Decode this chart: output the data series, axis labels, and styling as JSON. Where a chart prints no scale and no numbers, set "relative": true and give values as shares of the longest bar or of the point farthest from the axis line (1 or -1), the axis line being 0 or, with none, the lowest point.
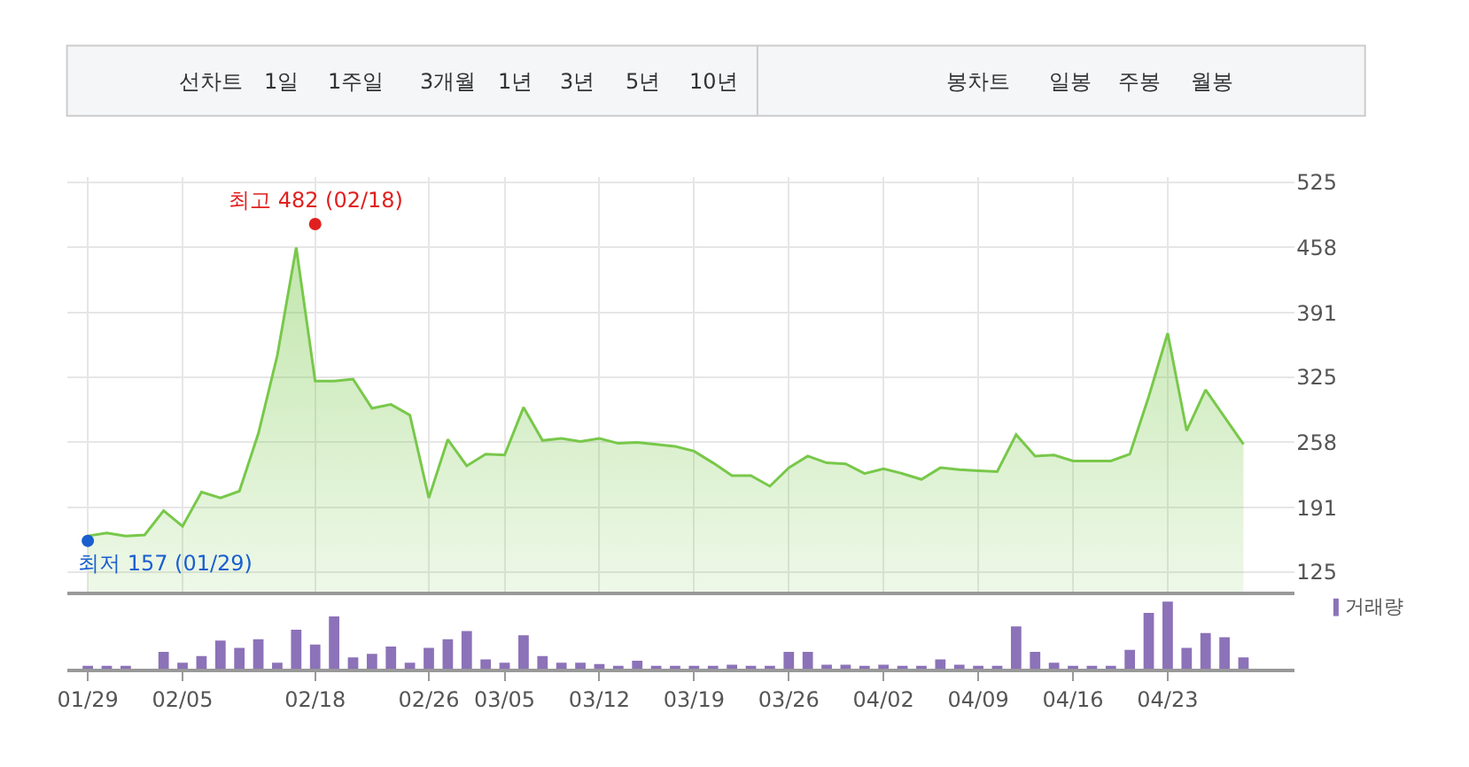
{
  "chart_data": [
    {
      "type": "area",
      "categories": [
        "01/29",
        null,
        null,
        null,
        null,
        "02/05",
        null,
        null,
        null,
        null,
        null,
        null,
        "02/18",
        null,
        null,
        null,
        null,
        null,
        "02/26",
        null,
        null,
        null,
        "03/05",
        null,
        null,
        null,
        null,
        "03/12",
        null,
        null,
        null,
        null,
        "03/19",
        null,
        null,
        null,
        null,
        "03/26",
        null,
        null,
        null,
        null,
        "04/02",
        null,
        null,
        null,
        null,
        "04/09",
        null,
        null,
        null,
        null,
        "04/16",
        null,
        null,
        null,
        null,
        "04/23",
        null,
        null,
        null,
        null
      ],
      "series": [
        {
          "color": "#78c84a",
          "values": [
            162,
            165,
            162,
            163,
            188,
            172,
            207,
            201,
            208,
            267,
            347,
            458,
            321,
            321,
            323,
            293,
            297,
            286,
            201,
            261,
            234,
            246,
            245,
            294,
            260,
            262,
            259,
            262,
            257,
            258,
            256,
            254,
            249,
            237,
            224,
            224,
            213,
            232,
            244,
            237,
            236,
            226,
            231,
            226,
            220,
            232,
            230,
            229,
            228,
            266,
            244,
            245,
            239,
            239,
            239,
            246,
            305,
            370,
            270,
            312,
            284,
            256
          ]
        }
      ],
      "ylim": [
        105,
        530
      ],
      "yticks": [
        125,
        191,
        258,
        325,
        391,
        458,
        525
      ],
      "grid": true,
      "tick_labels": "y",
      "annotations": [
        "선차트",
        "1일",
        "1주일",
        "3개월",
        "1년",
        "3년",
        "5년",
        "10년",
        "봉차트",
        "일봉",
        "주봉",
        "월봉",
        {
          "text": "최고 482 (02/18)",
          "x": "02/18",
          "y": 482
        },
        {
          "text": "최저 157 (01/29)",
          "x": "01/29",
          "y": 157
        }
      ]
    },
    {
      "type": "bar",
      "categories": [
        "01/29",
        null,
        null,
        null,
        null,
        "02/05",
        null,
        null,
        null,
        null,
        null,
        null,
        "02/18",
        null,
        null,
        null,
        null,
        null,
        "02/26",
        null,
        null,
        null,
        "03/05",
        null,
        null,
        null,
        null,
        "03/12",
        null,
        null,
        null,
        null,
        "03/19",
        null,
        null,
        null,
        null,
        "03/26",
        null,
        null,
        null,
        null,
        "04/02",
        null,
        null,
        null,
        null,
        "04/09",
        null,
        null,
        null,
        null,
        "04/16",
        null,
        null,
        null,
        null,
        "04/23",
        null,
        null,
        null,
        null
      ],
      "relative": true,
      "series": [
        {
          "name": "거래량",
          "color": "#8c72b8",
          "values": [
            0.03,
            0.03,
            0.03,
            0,
            0.25,
            0.09,
            0.19,
            0.42,
            0.31,
            0.44,
            0.09,
            0.58,
            0.36,
            0.78,
            0.17,
            0.22,
            0.33,
            0.09,
            0.31,
            0.44,
            0.56,
            0.14,
            0.09,
            0.5,
            0.19,
            0.09,
            0.09,
            0.07,
            0.03,
            0.12,
            0.03,
            0.03,
            0.03,
            0.03,
            0.06,
            0.03,
            0.03,
            0.25,
            0.25,
            0.06,
            0.06,
            0.04,
            0.06,
            0.03,
            0.03,
            0.14,
            0.06,
            0.03,
            0.03,
            0.63,
            0.25,
            0.09,
            0.04,
            0.03,
            0.03,
            0.28,
            0.83,
            1,
            0.31,
            0.53,
            0.47,
            0.17
          ]
        }
      ],
      "legend": "top right",
      "tick_labels": "x"
    }
  ]
}
